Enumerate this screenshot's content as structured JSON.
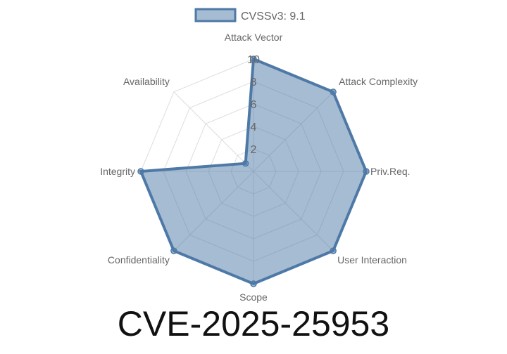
{
  "chart_data": {
    "type": "radar",
    "categories": [
      "Attack Vector",
      "Attack Complexity",
      "Priv.Req.",
      "User Interaction",
      "Scope",
      "Confidentiality",
      "Integrity",
      "Availability"
    ],
    "series": [
      {
        "name": "CVSSv3: 9.1",
        "values": [
          10,
          10,
          10,
          10,
          10,
          10,
          10,
          1
        ]
      }
    ],
    "rlim": [
      0,
      10
    ],
    "ticks": [
      "2",
      "4",
      "6",
      "8",
      "10"
    ],
    "tick_values": [
      2,
      4,
      6,
      8,
      10
    ],
    "legend": "top",
    "grid": true,
    "colors": {
      "line": "#4e79a7",
      "fill": "rgba(78,121,167,0.5)",
      "grid": "#dddddd"
    }
  },
  "title": "CVE-2025-25953"
}
